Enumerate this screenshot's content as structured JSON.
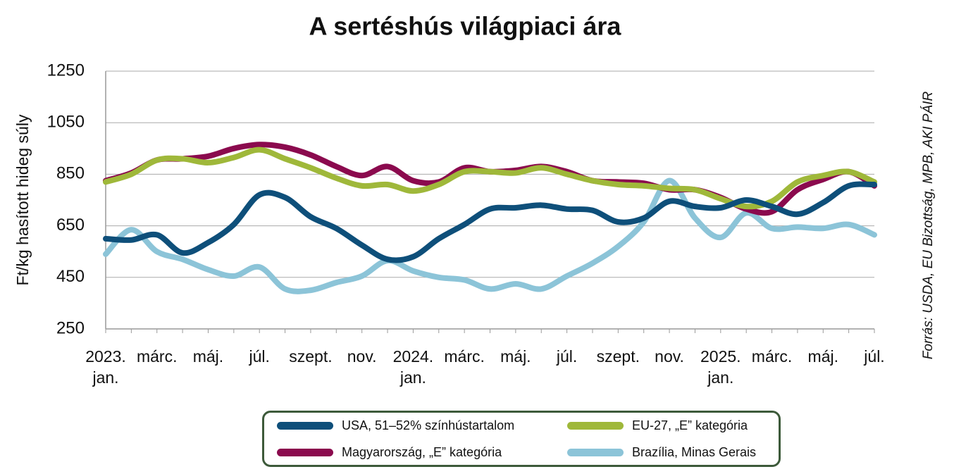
{
  "chart_data": {
    "type": "line",
    "title": "A sertéshús világpiaci ára",
    "y_label": "Ft/kg hasított hideg súly",
    "source": "Forrás: USDA, EU Bizottság, MPB, AKI PÁIR",
    "categories": [
      "2023. jan.",
      null,
      "márc.",
      null,
      "máj.",
      null,
      "júl.",
      null,
      "szept.",
      null,
      "nov.",
      null,
      "2024. jan.",
      null,
      "márc.",
      null,
      "máj.",
      null,
      "júl.",
      null,
      "szept.",
      null,
      "nov.",
      null,
      "2025. jan.",
      null,
      "márc.",
      null,
      "máj.",
      null,
      "júl."
    ],
    "ylim": [
      250,
      1250
    ],
    "yticks": [
      250,
      450,
      650,
      850,
      1050,
      1250
    ],
    "grid": true,
    "series": [
      {
        "name": "USA, 51–52% színhústartalom",
        "color": "#0e4f7a",
        "values": [
          600,
          595,
          615,
          545,
          585,
          655,
          770,
          760,
          685,
          640,
          575,
          520,
          530,
          600,
          655,
          715,
          720,
          730,
          715,
          710,
          665,
          680,
          745,
          725,
          720,
          750,
          725,
          695,
          740,
          805,
          810
        ]
      },
      {
        "name": "Magyarország, „E” kategória",
        "color": "#8b0a4e",
        "values": [
          825,
          855,
          905,
          910,
          920,
          950,
          965,
          955,
          925,
          880,
          845,
          880,
          825,
          820,
          875,
          860,
          865,
          880,
          860,
          825,
          820,
          815,
          790,
          790,
          760,
          715,
          705,
          790,
          830,
          860,
          805
        ]
      },
      {
        "name": "EU-27, „E” kategória",
        "color": "#9fb83a",
        "values": [
          820,
          850,
          905,
          910,
          895,
          915,
          945,
          910,
          875,
          835,
          805,
          810,
          785,
          810,
          860,
          860,
          855,
          875,
          850,
          825,
          810,
          805,
          795,
          790,
          755,
          725,
          745,
          820,
          845,
          860,
          820
        ]
      },
      {
        "name": "Brazília, Minas Gerais",
        "color": "#8cc4d8",
        "values": [
          540,
          635,
          550,
          520,
          480,
          455,
          490,
          405,
          400,
          430,
          455,
          515,
          475,
          450,
          440,
          405,
          425,
          405,
          455,
          505,
          570,
          665,
          825,
          680,
          605,
          700,
          640,
          645,
          640,
          655,
          615
        ]
      }
    ]
  }
}
